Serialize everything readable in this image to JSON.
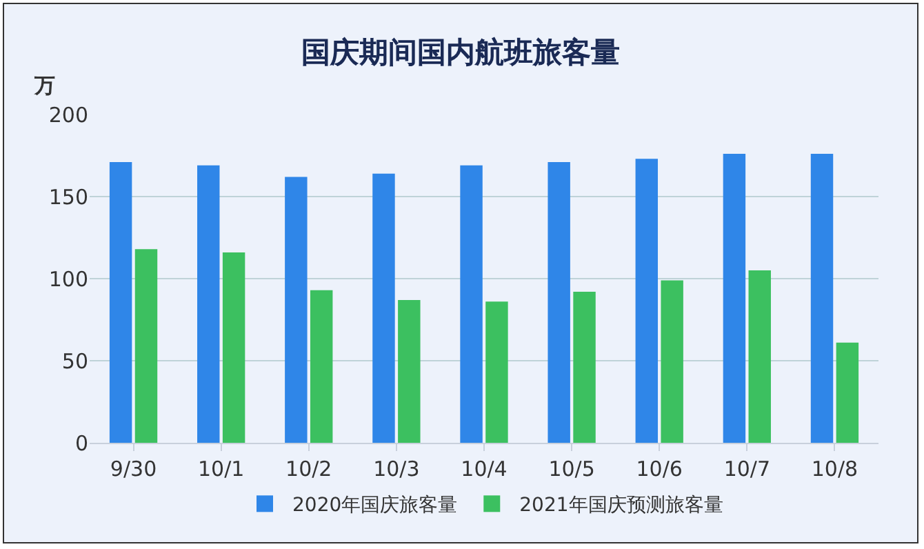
{
  "chart_data": {
    "type": "bar",
    "title": "国庆期间国内航班旅客量",
    "ylabel": "万",
    "categories": [
      "9/30",
      "10/1",
      "10/2",
      "10/3",
      "10/4",
      "10/5",
      "10/6",
      "10/7",
      "10/8"
    ],
    "series": [
      {
        "name": "2020年国庆旅客量",
        "color": "#2f86e8",
        "values": [
          171,
          169,
          162,
          164,
          169,
          171,
          173,
          176,
          176
        ]
      },
      {
        "name": "2021年国庆预测旅客量",
        "color": "#3cc060",
        "values": [
          118,
          116,
          93,
          87,
          86,
          92,
          99,
          105,
          61
        ]
      }
    ],
    "ylim": [
      0,
      200
    ],
    "yticks": [
      0,
      50,
      100,
      150,
      200
    ],
    "grid": "y",
    "legend": "bottom"
  }
}
